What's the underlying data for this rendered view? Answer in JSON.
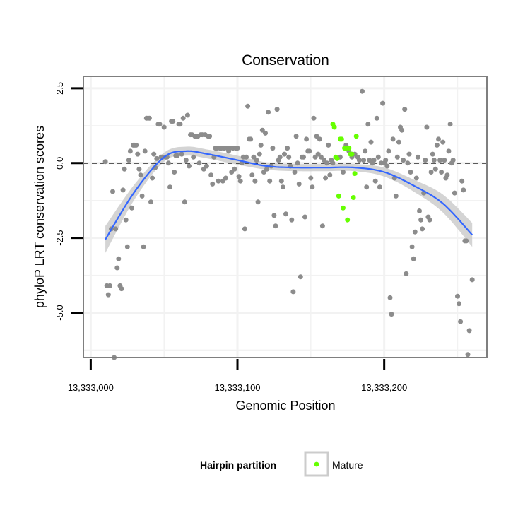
{
  "chart_data": {
    "type": "scatter",
    "title": "Conservation",
    "xlabel": "Genomic Position",
    "ylabel": "phyloP LRT conservation scores",
    "xlim": [
      13332995,
      13333270
    ],
    "ylim": [
      -6.5,
      2.9
    ],
    "x_ticks": [
      13333000,
      13333100,
      13333200
    ],
    "x_tick_labels": [
      "13,333,000",
      "13,333,100",
      "13,333,200"
    ],
    "y_ticks": [
      2.5,
      0,
      -2.5,
      -5
    ],
    "y_tick_labels": [
      "2.5",
      "0.0",
      "-2.5",
      "-5.0"
    ],
    "grid": true,
    "reference_line": {
      "y": 0,
      "style": "dashed"
    },
    "colors": {
      "points": "#8c8c8c",
      "mature": "#66ff00",
      "smooth": "#3366ff",
      "ribbon": "#cccccc",
      "panel_border": "#7f7f7f",
      "grid": "#f2f2f2"
    },
    "series": [
      {
        "name": "",
        "color": "#8c8c8c",
        "points": [
          [
            13333010,
            0.05
          ],
          [
            13333011,
            -4.1
          ],
          [
            13333012,
            -4.4
          ],
          [
            13333013,
            -4.1
          ],
          [
            13333014,
            -2.2
          ],
          [
            13333015,
            -0.95
          ],
          [
            13333016,
            -6.5
          ],
          [
            13333017,
            -2.2
          ],
          [
            13333018,
            -3.5
          ],
          [
            13333019,
            -3.2
          ],
          [
            13333020,
            -4.1
          ],
          [
            13333021,
            -4.2
          ],
          [
            13333022,
            -0.9
          ],
          [
            13333023,
            -0.2
          ],
          [
            13333024,
            -1.9
          ],
          [
            13333025,
            -2.8
          ],
          [
            13333026,
            0.1
          ],
          [
            13333027,
            0.4
          ],
          [
            13333028,
            -1.5
          ],
          [
            13333029,
            0.6
          ],
          [
            13333030,
            0.6
          ],
          [
            13333031,
            0.6
          ],
          [
            13333032,
            0.3
          ],
          [
            13333033,
            -0.2
          ],
          [
            13333034,
            -0.4
          ],
          [
            13333035,
            -1.1
          ],
          [
            13333036,
            -2.8
          ],
          [
            13333037,
            0.4
          ],
          [
            13333038,
            1.5
          ],
          [
            13333039,
            1.5
          ],
          [
            13333040,
            1.5
          ],
          [
            13333041,
            -1.3
          ],
          [
            13333042,
            -0.5
          ],
          [
            13333043,
            0.3
          ],
          [
            13333044,
            -0.15
          ],
          [
            13333045,
            0.15
          ],
          [
            13333046,
            1.3
          ],
          [
            13333047,
            1.3
          ],
          [
            13333048,
            0.2
          ],
          [
            13333049,
            0.2
          ],
          [
            13333050,
            1.2
          ],
          [
            13333051,
            0.2
          ],
          [
            13333052,
            0.2
          ],
          [
            13333053,
            0.0
          ],
          [
            13333054,
            -0.8
          ],
          [
            13333055,
            1.4
          ],
          [
            13333056,
            1.4
          ],
          [
            13333057,
            -0.3
          ],
          [
            13333058,
            0.25
          ],
          [
            13333059,
            0.25
          ],
          [
            13333060,
            1.3
          ],
          [
            13333061,
            1.3
          ],
          [
            13333062,
            0.3
          ],
          [
            13333063,
            1.5
          ],
          [
            13333064,
            -1.3
          ],
          [
            13333065,
            0.1
          ],
          [
            13333066,
            1.6
          ],
          [
            13333067,
            -0.1
          ],
          [
            13333068,
            0.95
          ],
          [
            13333069,
            0.95
          ],
          [
            13333070,
            0.2
          ],
          [
            13333071,
            0.9
          ],
          [
            13333072,
            0.9
          ],
          [
            13333073,
            0.9
          ],
          [
            13333074,
            0.0
          ],
          [
            13333075,
            0.95
          ],
          [
            13333076,
            0.95
          ],
          [
            13333077,
            -0.2
          ],
          [
            13333078,
            0.95
          ],
          [
            13333079,
            -0.1
          ],
          [
            13333080,
            0.9
          ],
          [
            13333081,
            0.9
          ],
          [
            13333082,
            -0.4
          ],
          [
            13333083,
            -0.7
          ],
          [
            13333084,
            0.2
          ],
          [
            13333085,
            0.5
          ],
          [
            13333086,
            0.5
          ],
          [
            13333087,
            -0.6
          ],
          [
            13333088,
            0.5
          ],
          [
            13333089,
            0.5
          ],
          [
            13333090,
            -0.6
          ],
          [
            13333091,
            0.5
          ],
          [
            13333092,
            -0.5
          ],
          [
            13333093,
            0.5
          ],
          [
            13333094,
            0.4
          ],
          [
            13333095,
            0.5
          ],
          [
            13333096,
            -0.3
          ],
          [
            13333097,
            0.5
          ],
          [
            13333098,
            -0.2
          ],
          [
            13333099,
            0.5
          ],
          [
            13333100,
            0.5
          ],
          [
            13333101,
            -0.45
          ],
          [
            13333102,
            -0.6
          ],
          [
            13333103,
            0.0
          ],
          [
            13333104,
            0.2
          ],
          [
            13333105,
            -2.2
          ],
          [
            13333106,
            0.2
          ],
          [
            13333107,
            1.9
          ],
          [
            13333108,
            0.8
          ],
          [
            13333109,
            0.8
          ],
          [
            13333110,
            -0.4
          ],
          [
            13333111,
            0.2
          ],
          [
            13333112,
            -0.6
          ],
          [
            13333113,
            0.1
          ],
          [
            13333114,
            -1.3
          ],
          [
            13333115,
            0.3
          ],
          [
            13333116,
            0.6
          ],
          [
            13333117,
            1.1
          ],
          [
            13333118,
            -0.3
          ],
          [
            13333119,
            1.0
          ],
          [
            13333120,
            -0.2
          ],
          [
            13333121,
            1.7
          ],
          [
            13333122,
            -0.6
          ],
          [
            13333123,
            -0.1
          ],
          [
            13333124,
            0.5
          ],
          [
            13333125,
            -1.75
          ],
          [
            13333126,
            -2.1
          ],
          [
            13333127,
            1.8
          ],
          [
            13333128,
            0.1
          ],
          [
            13333129,
            0.2
          ],
          [
            13333130,
            -0.6
          ],
          [
            13333131,
            -0.8
          ],
          [
            13333132,
            0.3
          ],
          [
            13333133,
            -1.7
          ],
          [
            13333134,
            0.5
          ],
          [
            13333135,
            0.2
          ],
          [
            13333136,
            -0.1
          ],
          [
            13333137,
            -1.9
          ],
          [
            13333138,
            -4.3
          ],
          [
            13333139,
            -0.3
          ],
          [
            13333140,
            0.9
          ],
          [
            13333141,
            0.0
          ],
          [
            13333142,
            -0.7
          ],
          [
            13333143,
            -3.8
          ],
          [
            13333144,
            0.2
          ],
          [
            13333145,
            0.2
          ],
          [
            13333146,
            -1.8
          ],
          [
            13333147,
            0.8
          ],
          [
            13333148,
            0.4
          ],
          [
            13333149,
            0.4
          ],
          [
            13333150,
            -0.5
          ],
          [
            13333151,
            -0.8
          ],
          [
            13333152,
            1.5
          ],
          [
            13333153,
            0.2
          ],
          [
            13333154,
            0.9
          ],
          [
            13333155,
            0.3
          ],
          [
            13333156,
            0.8
          ],
          [
            13333157,
            0.2
          ],
          [
            13333158,
            -2.1
          ],
          [
            13333159,
            0.1
          ],
          [
            13333160,
            -0.5
          ],
          [
            13333161,
            0.0
          ],
          [
            13333162,
            0.6
          ],
          [
            13333163,
            -0.4
          ],
          [
            13333164,
            0.1
          ],
          [
            13333165,
            0.0
          ],
          [
            13333170,
            0.2
          ],
          [
            13333172,
            -0.3
          ],
          [
            13333174,
            0.6
          ],
          [
            13333176,
            0.4
          ],
          [
            13333178,
            0.2
          ],
          [
            13333180,
            0.3
          ],
          [
            13333182,
            0.2
          ],
          [
            13333183,
            0.1
          ],
          [
            13333185,
            2.4
          ],
          [
            13333186,
            0.1
          ],
          [
            13333187,
            0.4
          ],
          [
            13333188,
            -0.8
          ],
          [
            13333189,
            1.3
          ],
          [
            13333190,
            0.1
          ],
          [
            13333191,
            0.7
          ],
          [
            13333192,
            0.0
          ],
          [
            13333193,
            0.1
          ],
          [
            13333194,
            -0.6
          ],
          [
            13333195,
            1.5
          ],
          [
            13333196,
            0.2
          ],
          [
            13333197,
            -0.8
          ],
          [
            13333198,
            0.0
          ],
          [
            13333199,
            2.0
          ],
          [
            13333200,
            0.0
          ],
          [
            13333201,
            0.1
          ],
          [
            13333202,
            -0.1
          ],
          [
            13333203,
            0.4
          ],
          [
            13333204,
            -4.5
          ],
          [
            13333205,
            -5.05
          ],
          [
            13333206,
            0.8
          ],
          [
            13333207,
            -0.5
          ],
          [
            13333208,
            -1.1
          ],
          [
            13333209,
            0.2
          ],
          [
            13333210,
            0.7
          ],
          [
            13333211,
            1.2
          ],
          [
            13333212,
            1.1
          ],
          [
            13333213,
            0.1
          ],
          [
            13333214,
            1.8
          ],
          [
            13333215,
            -3.7
          ],
          [
            13333216,
            0.0
          ],
          [
            13333217,
            0.3
          ],
          [
            13333218,
            -0.3
          ],
          [
            13333219,
            -2.8
          ],
          [
            13333220,
            -3.2
          ],
          [
            13333221,
            -2.3
          ],
          [
            13333222,
            -0.5
          ],
          [
            13333223,
            0.2
          ],
          [
            13333224,
            -1.6
          ],
          [
            13333225,
            -1.9
          ],
          [
            13333226,
            -2.2
          ],
          [
            13333227,
            -1.0
          ],
          [
            13333228,
            0.1
          ],
          [
            13333229,
            1.2
          ],
          [
            13333230,
            -1.8
          ],
          [
            13333231,
            -1.9
          ],
          [
            13333232,
            -0.3
          ],
          [
            13333233,
            0.3
          ],
          [
            13333234,
            0.1
          ],
          [
            13333235,
            -0.2
          ],
          [
            13333236,
            0.6
          ],
          [
            13333237,
            0.8
          ],
          [
            13333238,
            0.1
          ],
          [
            13333239,
            -0.3
          ],
          [
            13333240,
            0.7
          ],
          [
            13333241,
            0.1
          ],
          [
            13333242,
            -0.5
          ],
          [
            13333243,
            -0.4
          ],
          [
            13333244,
            0.4
          ],
          [
            13333245,
            1.3
          ],
          [
            13333246,
            0.0
          ],
          [
            13333247,
            0.1
          ],
          [
            13333248,
            -1.0
          ],
          [
            13333250,
            -4.45
          ],
          [
            13333251,
            -4.7
          ],
          [
            13333252,
            -5.3
          ],
          [
            13333253,
            -0.6
          ],
          [
            13333254,
            -0.9
          ],
          [
            13333255,
            -2.6
          ],
          [
            13333256,
            -2.6
          ],
          [
            13333257,
            -6.4
          ],
          [
            13333258,
            -5.6
          ],
          [
            13333260,
            -3.9
          ]
        ]
      },
      {
        "name": "Mature",
        "color": "#66ff00",
        "points": [
          [
            13333165,
            1.3
          ],
          [
            13333166,
            1.2
          ],
          [
            13333167,
            0.2
          ],
          [
            13333168,
            0.15
          ],
          [
            13333169,
            -1.1
          ],
          [
            13333170,
            0.8
          ],
          [
            13333171,
            0.8
          ],
          [
            13333172,
            -1.5
          ],
          [
            13333173,
            0.5
          ],
          [
            13333174,
            0.5
          ],
          [
            13333175,
            -1.9
          ],
          [
            13333176,
            0.5
          ],
          [
            13333177,
            0.3
          ],
          [
            13333178,
            0.3
          ],
          [
            13333179,
            -1.15
          ],
          [
            13333180,
            -0.35
          ],
          [
            13333181,
            0.9
          ]
        ]
      }
    ],
    "smooth": {
      "method": "loess",
      "x": [
        13333010,
        13333030,
        13333050,
        13333065,
        13333080,
        13333100,
        13333120,
        13333140,
        13333160,
        13333180,
        13333200,
        13333220,
        13333240,
        13333260
      ],
      "y": [
        -2.55,
        -0.95,
        0.2,
        0.4,
        0.3,
        0.1,
        -0.1,
        -0.15,
        -0.15,
        -0.15,
        -0.3,
        -0.75,
        -1.35,
        -2.4
      ],
      "se": [
        0.45,
        0.25,
        0.15,
        0.15,
        0.15,
        0.15,
        0.12,
        0.12,
        0.12,
        0.12,
        0.15,
        0.2,
        0.3,
        0.4
      ]
    },
    "legend": {
      "title": "Hairpin partition",
      "position": "bottom",
      "entries": [
        {
          "label": "Mature",
          "color": "#66ff00"
        }
      ]
    }
  }
}
